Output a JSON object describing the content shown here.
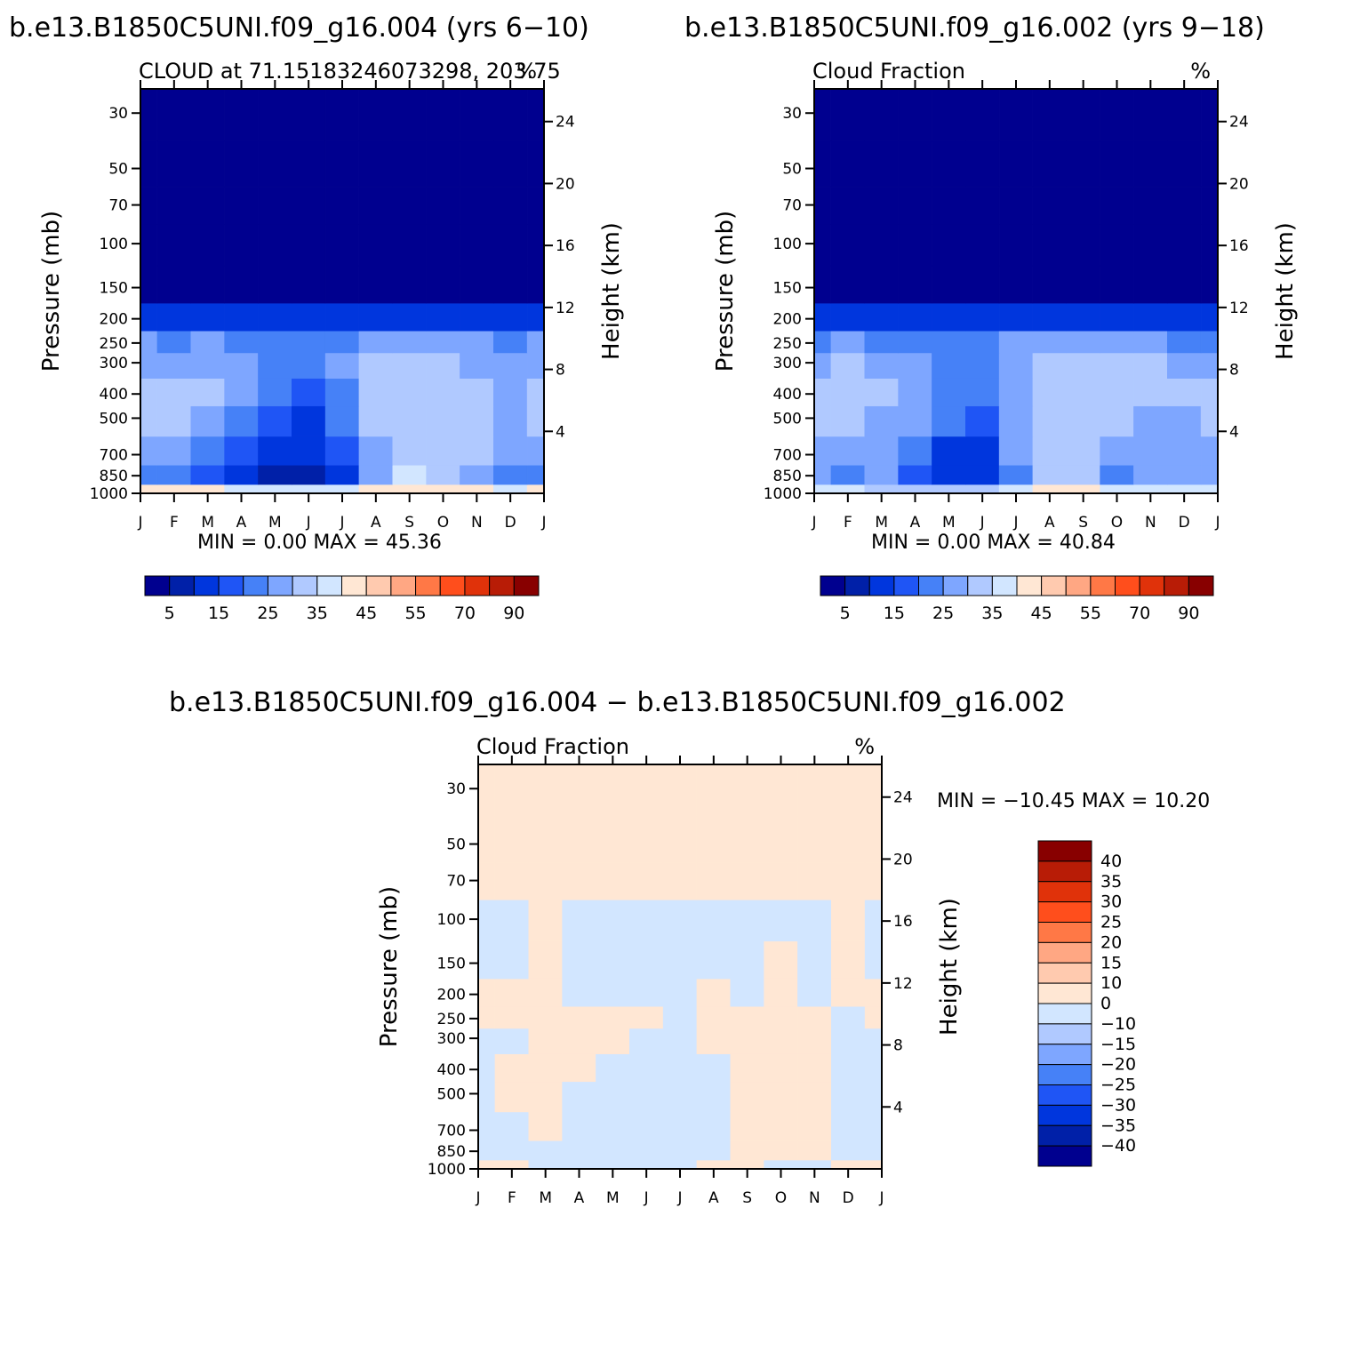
{
  "figure": {
    "panel_a_title": "b.e13.B1850C5UNI.f09_g16.004 (yrs 6−10)",
    "panel_b_title": "b.e13.B1850C5UNI.f09_g16.002 (yrs 9−18)",
    "panel_c_title": "b.e13.B1850C5UNI.f09_g16.004 − b.e13.B1850C5UNI.f09_g16.002"
  },
  "colors": {
    "abs_scale": [
      "#00008f",
      "#0020a8",
      "#0036dd",
      "#1f55f5",
      "#4681f7",
      "#7ea6ff",
      "#b0c9ff",
      "#d2e6ff",
      "#ffe7d4",
      "#ffcaaf",
      "#ffa783",
      "#ff7846",
      "#ff4e1c",
      "#e0320a",
      "#b81c06",
      "#880000"
    ],
    "diff_scale": [
      "#00008f",
      "#0020a8",
      "#0036dd",
      "#1f55f5",
      "#4681f7",
      "#7ea6ff",
      "#b0c9ff",
      "#d2e6ff",
      "#ffe7d4",
      "#ffcaaf",
      "#ffa783",
      "#ff7846",
      "#ff4e1c",
      "#e0320a",
      "#b81c06",
      "#880000"
    ]
  },
  "chart_data": [
    {
      "type": "heatmap",
      "title": "b.e13.B1850C5UNI.f09_g16.004 (yrs 6−10)",
      "subtitle": "CLOUD at 71.15183246073298, 203.75",
      "units_label": "%",
      "ylabel": "Pressure (mb)",
      "ylabel_right": "Height (km)",
      "x_ticks": [
        "J",
        "F",
        "M",
        "A",
        "M",
        "J",
        "J",
        "A",
        "S",
        "O",
        "N",
        "D",
        "J"
      ],
      "y_ticks": [
        30,
        50,
        70,
        100,
        150,
        200,
        250,
        300,
        400,
        500,
        700,
        850,
        1000
      ],
      "y_ticks_right": [
        24,
        20,
        16,
        12,
        8,
        4
      ],
      "y_scale": "log",
      "stats": "MIN =    0.00  MAX =   45.36",
      "min": 0.0,
      "max": 45.36,
      "levels": [
        1000,
        850,
        700,
        500,
        400,
        300,
        250,
        200,
        150,
        100,
        70,
        50,
        30
      ],
      "months": [
        "J",
        "F",
        "M",
        "A",
        "M",
        "J",
        "J",
        "A",
        "S",
        "O",
        "N",
        "D",
        "J"
      ],
      "values": [
        [
          41,
          41,
          40,
          36,
          35,
          35,
          38,
          42,
          44,
          43,
          40,
          38,
          41
        ],
        [
          20,
          21,
          18,
          10,
          7,
          6,
          13,
          28,
          35,
          32,
          29,
          23,
          20
        ],
        [
          28,
          28,
          22,
          16,
          11,
          10,
          18,
          29,
          34,
          33,
          30,
          26,
          28
        ],
        [
          31,
          31,
          28,
          23,
          15,
          13,
          22,
          30,
          33,
          33,
          30,
          28,
          31
        ],
        [
          30,
          30,
          31,
          27,
          22,
          19,
          24,
          30,
          33,
          34,
          31,
          29,
          30
        ],
        [
          28,
          27,
          29,
          27,
          24,
          23,
          26,
          30,
          32,
          31,
          29,
          27,
          28
        ],
        [
          25,
          24,
          26,
          24,
          22,
          22,
          23,
          25,
          26,
          26,
          25,
          24,
          25
        ],
        [
          13,
          11,
          14,
          11,
          10,
          11,
          12,
          14,
          12,
          12,
          11,
          11,
          13
        ],
        [
          1,
          1,
          1,
          1,
          1,
          1,
          1,
          1,
          1,
          1,
          1,
          1,
          1
        ],
        [
          0,
          0,
          0,
          0,
          0,
          0,
          0,
          0,
          0,
          0,
          0,
          0,
          0
        ],
        [
          0,
          0,
          0,
          0,
          0,
          0,
          0,
          0,
          0,
          0,
          0,
          0,
          0
        ],
        [
          0,
          0,
          0,
          0,
          0,
          0,
          0,
          0,
          0,
          0,
          0,
          0,
          0
        ],
        [
          0,
          0,
          0,
          0,
          0,
          0,
          0,
          0,
          0,
          0,
          0,
          0,
          0
        ]
      ],
      "colorbar_labels": [
        "5",
        "15",
        "25",
        "35",
        "45",
        "55",
        "70",
        "90"
      ],
      "contour_levels": [
        5,
        10,
        15,
        20,
        25,
        30,
        35,
        40,
        45,
        50,
        55,
        60,
        70,
        80,
        90
      ]
    },
    {
      "type": "heatmap",
      "title": "b.e13.B1850C5UNI.f09_g16.002 (yrs 9−18)",
      "subtitle": "Cloud Fraction",
      "units_label": "%",
      "ylabel": "Pressure (mb)",
      "ylabel_right": "Height (km)",
      "x_ticks": [
        "J",
        "F",
        "M",
        "A",
        "M",
        "J",
        "J",
        "A",
        "S",
        "O",
        "N",
        "D",
        "J"
      ],
      "y_ticks": [
        30,
        50,
        70,
        100,
        150,
        200,
        250,
        300,
        400,
        500,
        700,
        850,
        1000
      ],
      "y_ticks_right": [
        24,
        20,
        16,
        12,
        8,
        4
      ],
      "y_scale": "log",
      "stats": "MIN =    0.00  MAX =   40.84",
      "min": 0.0,
      "max": 40.84,
      "levels": [
        1000,
        850,
        700,
        500,
        400,
        300,
        250,
        200,
        150,
        100,
        70,
        50,
        30
      ],
      "months": [
        "J",
        "F",
        "M",
        "A",
        "M",
        "J",
        "J",
        "A",
        "S",
        "O",
        "N",
        "D",
        "J"
      ],
      "values": [
        [
          38,
          36,
          33,
          32,
          32,
          33,
          36,
          40,
          41,
          38,
          36,
          35,
          38
        ],
        [
          27,
          22,
          27,
          15,
          10,
          10,
          23,
          31,
          33,
          24,
          27,
          27,
          27
        ],
        [
          29,
          28,
          27,
          21,
          13,
          13,
          25,
          30,
          32,
          28,
          26,
          27,
          29
        ],
        [
          30,
          30,
          29,
          26,
          20,
          19,
          26,
          31,
          32,
          31,
          28,
          28,
          30
        ],
        [
          31,
          32,
          30,
          27,
          24,
          23,
          28,
          32,
          33,
          32,
          30,
          30,
          31
        ],
        [
          29,
          30,
          29,
          27,
          24,
          24,
          28,
          30,
          31,
          31,
          30,
          29,
          29
        ],
        [
          24,
          25,
          24,
          23,
          22,
          22,
          25,
          26,
          26,
          26,
          25,
          24,
          24
        ],
        [
          12,
          13,
          11,
          11,
          10,
          11,
          13,
          14,
          14,
          14,
          13,
          12,
          12
        ],
        [
          1,
          1,
          1,
          1,
          1,
          1,
          1,
          1,
          1,
          1,
          1,
          1,
          1
        ],
        [
          0,
          0,
          0,
          0,
          0,
          0,
          0,
          0,
          0,
          0,
          0,
          0,
          0
        ],
        [
          0,
          0,
          0,
          0,
          0,
          0,
          0,
          0,
          0,
          0,
          0,
          0,
          0
        ],
        [
          0,
          0,
          0,
          0,
          0,
          0,
          0,
          0,
          0,
          0,
          0,
          0,
          0
        ],
        [
          0,
          0,
          0,
          0,
          0,
          0,
          0,
          0,
          0,
          0,
          0,
          0,
          0
        ]
      ],
      "colorbar_labels": [
        "5",
        "15",
        "25",
        "35",
        "45",
        "55",
        "70",
        "90"
      ],
      "contour_levels": [
        5,
        10,
        15,
        20,
        25,
        30,
        35,
        40,
        45,
        50,
        55,
        60,
        70,
        80,
        90
      ]
    },
    {
      "type": "heatmap",
      "title": "b.e13.B1850C5UNI.f09_g16.004 − b.e13.B1850C5UNI.f09_g16.002",
      "subtitle": "Cloud Fraction",
      "units_label": "%",
      "ylabel": "Pressure (mb)",
      "ylabel_right": "Height (km)",
      "x_ticks": [
        "J",
        "F",
        "M",
        "A",
        "M",
        "J",
        "J",
        "A",
        "S",
        "O",
        "N",
        "D",
        "J"
      ],
      "y_ticks": [
        30,
        50,
        70,
        100,
        150,
        200,
        250,
        300,
        400,
        500,
        700,
        850,
        1000
      ],
      "y_ticks_right": [
        24,
        20,
        16,
        12,
        8,
        4
      ],
      "y_scale": "log",
      "stats": "MIN = −10.45  MAX =   10.20",
      "min": -10.45,
      "max": 10.2,
      "levels": [
        1000,
        850,
        700,
        500,
        400,
        300,
        250,
        200,
        150,
        100,
        70,
        50,
        30
      ],
      "months": [
        "J",
        "F",
        "M",
        "A",
        "M",
        "J",
        "J",
        "A",
        "S",
        "O",
        "N",
        "D",
        "J"
      ],
      "values": [
        [
          3,
          2,
          -1,
          -1,
          -1,
          -1,
          -1,
          1,
          2,
          -1,
          -1,
          2,
          3
        ],
        [
          -2,
          -1,
          -1,
          -1,
          -4,
          -3,
          -3,
          -2,
          1,
          2,
          1,
          -3,
          -2
        ],
        [
          -1,
          -1,
          2,
          -2,
          -3,
          -3,
          -3,
          -1,
          2,
          2,
          1,
          -2,
          -1
        ],
        [
          -1,
          1,
          2,
          -1,
          -4,
          -5,
          -4,
          -1,
          2,
          1,
          1,
          -1,
          -1
        ],
        [
          -1,
          2,
          2,
          3,
          -1,
          -2,
          -2,
          -1,
          1,
          2,
          1,
          -1,
          -1
        ],
        [
          -1,
          -1,
          2,
          2,
          2,
          -1,
          -1,
          1,
          1,
          2,
          1,
          -2,
          -1
        ],
        [
          1,
          1,
          2,
          1,
          1,
          1,
          -1,
          1,
          1,
          1,
          1,
          -1,
          1
        ],
        [
          1,
          1,
          2,
          -1,
          -1,
          -1,
          -1,
          1,
          -1,
          1,
          -1,
          1,
          1
        ],
        [
          -1,
          -1,
          1,
          -1,
          -1,
          -1,
          -1,
          -1,
          -1,
          1,
          -1,
          1,
          -1
        ],
        [
          -1,
          -1,
          1,
          -1,
          -1,
          -1,
          -1,
          -1,
          -1,
          -1,
          -1,
          1,
          -1
        ],
        [
          1,
          1,
          1,
          1,
          1,
          1,
          1,
          1,
          1,
          1,
          1,
          1,
          1
        ],
        [
          1,
          1,
          1,
          1,
          1,
          1,
          1,
          1,
          1,
          1,
          1,
          1,
          1
        ],
        [
          1,
          1,
          1,
          1,
          1,
          1,
          1,
          1,
          1,
          1,
          1,
          1,
          1
        ]
      ],
      "colorbar_labels": [
        "40",
        "35",
        "30",
        "25",
        "20",
        "15",
        "10",
        "0",
        "−10",
        "−15",
        "−20",
        "−25",
        "−30",
        "−35",
        "−40"
      ],
      "contour_levels": [
        -40,
        -35,
        -30,
        -25,
        -20,
        -15,
        -10,
        0,
        10,
        15,
        20,
        25,
        30,
        35,
        40
      ]
    }
  ]
}
